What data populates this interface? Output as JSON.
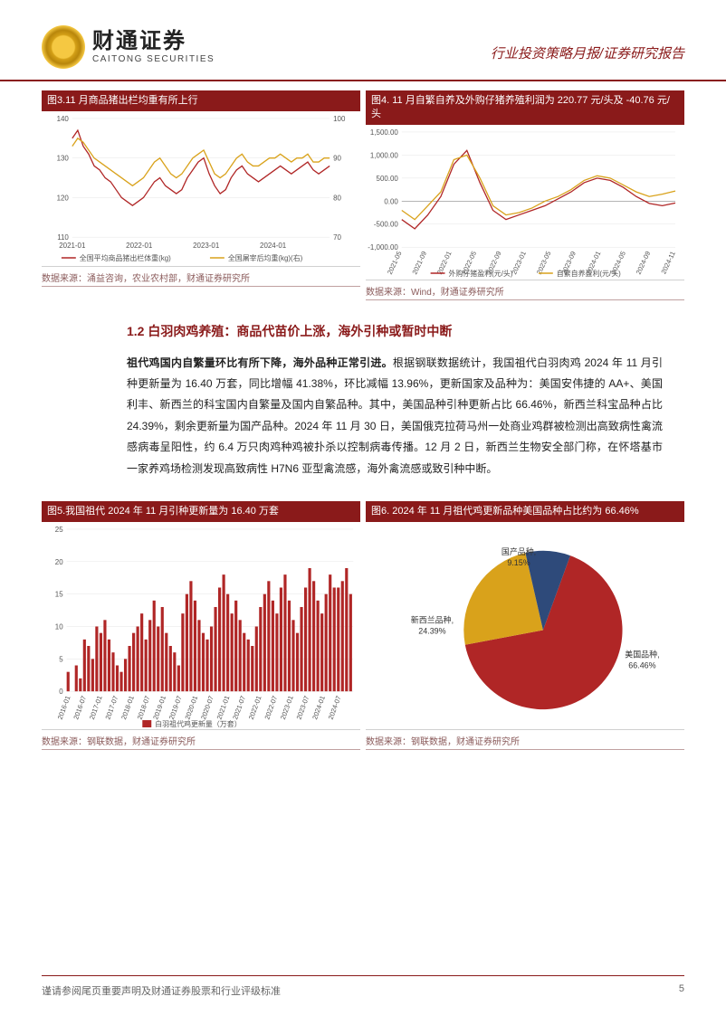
{
  "header": {
    "company_cn": "财通证券",
    "company_en": "CAITONG SECURITIES",
    "report_type": "行业投资策略月报/证券研究报告"
  },
  "chart3": {
    "title": "图3.11 月商品猪出栏均重有所上行",
    "source": "数据来源：涌益咨询，农业农村部，财通证券研究所",
    "type": "line",
    "y1_lim": [
      110,
      140
    ],
    "y1_ticks": [
      110,
      120,
      130,
      140
    ],
    "y2_lim": [
      70,
      100
    ],
    "y2_ticks": [
      70,
      80,
      90,
      100
    ],
    "x_labels": [
      "2021-01",
      "2022-01",
      "2023-01",
      "2024-01"
    ],
    "series": [
      {
        "name": "全国平均商品猪出栏体重(kg)",
        "color": "#b02626",
        "axis": "y1",
        "data": [
          135,
          137,
          133,
          131,
          128,
          127,
          125,
          124,
          122,
          120,
          119,
          118,
          119,
          120,
          122,
          124,
          125,
          123,
          122,
          121,
          122,
          125,
          127,
          129,
          130,
          126,
          123,
          121,
          122,
          125,
          127,
          128,
          126,
          125,
          124,
          125,
          126,
          127,
          128,
          127,
          126,
          127,
          128,
          129,
          127,
          126,
          127,
          128
        ]
      },
      {
        "name": "全国屠宰后均重(kg)(右)",
        "color": "#d9a21b",
        "axis": "y2",
        "data": [
          93,
          95,
          94,
          92,
          90,
          89,
          88,
          87,
          86,
          85,
          84,
          83,
          84,
          85,
          87,
          89,
          90,
          88,
          86,
          85,
          86,
          88,
          90,
          91,
          92,
          89,
          86,
          85,
          86,
          88,
          90,
          91,
          89,
          88,
          88,
          89,
          90,
          90,
          91,
          90,
          89,
          90,
          90,
          91,
          89,
          89,
          90,
          90
        ]
      }
    ]
  },
  "chart4": {
    "title": "图4. 11 月自繁自养及外购仔猪养殖利润为 220.77 元/头及 -40.76 元/头",
    "source": "数据来源：Wind，财通证券研究所",
    "type": "line",
    "y_lim": [
      -1000,
      1500
    ],
    "y_ticks": [
      -1000,
      -500,
      0,
      500,
      1000,
      1500
    ],
    "x_labels": [
      "2021-05",
      "2021-09",
      "2022-01",
      "2022-05",
      "2022-09",
      "2023-01",
      "2023-05",
      "2023-09",
      "2024-01",
      "2024-05",
      "2024-09",
      "2024-11"
    ],
    "series": [
      {
        "name": "外购仔猪盈利(元/头)",
        "color": "#b02626",
        "data": [
          -400,
          -600,
          -300,
          100,
          800,
          1100,
          400,
          -200,
          -400,
          -300,
          -200,
          -100,
          50,
          200,
          400,
          500,
          450,
          300,
          100,
          -50,
          -100,
          -40
        ]
      },
      {
        "name": "自繁自养盈利(元/头)",
        "color": "#d9a21b",
        "data": [
          -200,
          -400,
          -100,
          200,
          900,
          1000,
          500,
          -100,
          -300,
          -250,
          -150,
          0,
          100,
          250,
          450,
          550,
          500,
          350,
          200,
          100,
          150,
          220
        ]
      }
    ]
  },
  "section12": {
    "heading": "1.2  白羽肉鸡养殖：商品代苗价上涨，海外引种或暂时中断",
    "lead": "祖代鸡国内自繁量环比有所下降，海外品种正常引进。",
    "body": "根据钢联数据统计，我国祖代白羽肉鸡 2024 年 11 月引种更新量为 16.40 万套，同比增幅 41.38%，环比减幅 13.96%，更新国家及品种为：美国安伟捷的 AA+、美国利丰、新西兰的科宝国内自繁量及国内自繁品种。其中，美国品种引种更新占比 66.46%，新西兰科宝品种占比 24.39%，剩余更新量为国产品种。2024 年 11 月 30 日，美国俄克拉荷马州一处商业鸡群被检测出高致病性禽流感病毒呈阳性，约 6.4 万只肉鸡种鸡被扑杀以控制病毒传播。12 月 2 日，新西兰生物安全部门称，在怀塔基市一家养鸡场检测发现高致病性 H7N6 亚型禽流感，海外禽流感或致引种中断。"
  },
  "chart5": {
    "title": "图5.我国祖代 2024 年 11 月引种更新量为 16.40 万套",
    "source": "数据来源：钢联数据，财通证券研究所",
    "type": "bar",
    "y_lim": [
      0,
      25
    ],
    "y_ticks": [
      0,
      5,
      10,
      15,
      20,
      25
    ],
    "x_labels": [
      "2016-01",
      "2016-07",
      "2017-01",
      "2017-07",
      "2018-01",
      "2018-07",
      "2019-01",
      "2019-07",
      "2020-01",
      "2020-07",
      "2021-01",
      "2021-07",
      "2022-01",
      "2022-07",
      "2023-01",
      "2023-07",
      "2024-01",
      "2024-07"
    ],
    "series_name": "白羽祖代鸡更新量（万套）",
    "bar_color": "#b02626",
    "data": [
      3,
      0,
      4,
      2,
      8,
      7,
      5,
      10,
      9,
      11,
      8,
      6,
      4,
      3,
      5,
      7,
      9,
      10,
      12,
      8,
      11,
      14,
      10,
      13,
      9,
      7,
      6,
      4,
      12,
      15,
      17,
      14,
      11,
      9,
      8,
      10,
      13,
      16,
      18,
      15,
      12,
      14,
      11,
      9,
      8,
      7,
      10,
      13,
      15,
      17,
      14,
      12,
      16,
      18,
      14,
      11,
      9,
      13,
      16,
      19,
      17,
      14,
      12,
      15,
      18,
      16,
      16,
      17,
      19,
      15
    ]
  },
  "chart6": {
    "title": "图6. 2024 年 11 月祖代鸡更新品种美国品种占比约为 66.46%",
    "source": "数据来源：钢联数据，财通证券研究所",
    "type": "pie",
    "slices": [
      {
        "name": "美国品种",
        "label": "美国品种,\n66.46%",
        "value": 66.46,
        "color": "#b02626"
      },
      {
        "name": "新西兰品种",
        "label": "新西兰品种,\n24.39%",
        "value": 24.39,
        "color": "#d9a21b"
      },
      {
        "name": "国产品种",
        "label": "国产品种,\n9.15%",
        "value": 9.15,
        "color": "#2e4a7a"
      }
    ]
  },
  "footer": {
    "disclaimer": "谨请参阅尾页重要声明及财通证券股票和行业评级标准",
    "page": "5"
  }
}
